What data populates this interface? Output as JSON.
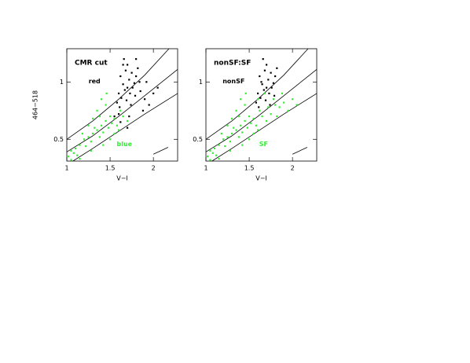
{
  "chart_data": [
    {
      "type": "scatter",
      "title": "CMR cut",
      "xlabel": "V−I",
      "ylabel": "464−518",
      "xlim": [
        1,
        2.28
      ],
      "ylim": [
        0.31,
        1.29
      ],
      "xticks": [
        1,
        1.5,
        2
      ],
      "yticks": [
        0.5,
        1
      ],
      "series": [
        {
          "name": "red",
          "color": "#000000",
          "x": [
            1.62,
            1.65,
            1.68,
            1.7,
            1.72,
            1.75,
            1.78,
            1.6,
            1.63,
            1.67,
            1.73,
            1.76,
            1.8,
            1.82,
            1.7,
            1.66,
            1.58,
            1.61,
            1.69,
            1.74,
            1.79,
            1.85,
            1.9,
            1.95,
            2.0,
            1.88,
            1.55,
            1.6,
            1.72,
            1.84,
            1.92,
            2.05,
            1.7,
            1.62,
            1.8,
            1.65
          ],
          "values": [
            1.05,
            0.98,
            1.1,
            0.95,
            1.02,
            1.08,
            0.99,
            0.9,
            0.86,
            0.93,
            0.9,
            0.95,
            1.05,
            1.12,
            1.15,
            1.2,
            0.82,
            0.78,
            0.84,
            0.8,
            0.88,
            0.92,
            0.85,
            0.8,
            0.9,
            0.75,
            0.7,
            0.72,
            0.7,
            1.0,
            1.0,
            0.95,
            0.6,
            0.65,
            1.2,
            1.15
          ]
        },
        {
          "name": "blue",
          "color": "#33ee33",
          "x": [
            1.02,
            1.05,
            1.08,
            1.1,
            1.12,
            1.15,
            1.2,
            1.22,
            1.25,
            1.28,
            1.3,
            1.32,
            1.35,
            1.38,
            1.4,
            1.42,
            1.45,
            1.48,
            1.5,
            1.52,
            1.55,
            1.58,
            1.35,
            1.4,
            1.45,
            1.3,
            1.25,
            1.18,
            1.6,
            1.65,
            1.7,
            1.05,
            1.15,
            1.5,
            1.55,
            1.42,
            1.28,
            1.62,
            1.38,
            1.46
          ],
          "values": [
            0.35,
            0.4,
            0.38,
            0.42,
            0.36,
            0.45,
            0.5,
            0.44,
            0.52,
            0.48,
            0.55,
            0.6,
            0.58,
            0.52,
            0.62,
            0.56,
            0.66,
            0.6,
            0.7,
            0.64,
            0.68,
            0.62,
            0.75,
            0.85,
            0.8,
            0.68,
            0.62,
            0.55,
            0.58,
            0.7,
            0.66,
            0.32,
            0.33,
            0.5,
            0.55,
            0.45,
            0.4,
            0.75,
            0.7,
            0.9
          ]
        }
      ],
      "curves": [
        {
          "x": [
            1,
            1.3,
            1.6,
            1.9,
            2.18
          ],
          "y": [
            0.5,
            0.66,
            0.85,
            1.06,
            1.29
          ]
        },
        {
          "x": [
            1,
            1.3,
            1.6,
            1.9,
            2.28
          ],
          "y": [
            0.39,
            0.53,
            0.7,
            0.88,
            1.11
          ]
        },
        {
          "x": [
            1.07,
            1.3,
            1.6,
            1.9,
            2.28
          ],
          "y": [
            0.31,
            0.42,
            0.57,
            0.72,
            0.9
          ]
        }
      ],
      "vector": {
        "x": [
          2.0,
          2.17
        ],
        "y": [
          0.37,
          0.43
        ]
      }
    },
    {
      "type": "scatter",
      "title": "nonSF:SF",
      "xlabel": "V−I",
      "xlim": [
        1,
        2.28
      ],
      "ylim": [
        0.31,
        1.29
      ],
      "xticks": [
        1,
        1.5,
        2
      ],
      "yticks": [
        0.5,
        1
      ],
      "series": [
        {
          "name": "nonSF",
          "color": "#000000",
          "x": [
            1.62,
            1.65,
            1.68,
            1.7,
            1.72,
            1.75,
            1.78,
            1.6,
            1.63,
            1.67,
            1.73,
            1.76,
            1.8,
            1.82,
            1.7,
            1.66,
            1.58,
            1.61,
            1.69,
            1.74,
            1.79,
            1.64
          ],
          "values": [
            1.05,
            0.98,
            1.1,
            0.95,
            1.02,
            1.08,
            0.99,
            0.9,
            0.86,
            0.93,
            0.9,
            0.95,
            1.05,
            1.12,
            1.15,
            1.2,
            0.82,
            0.78,
            0.84,
            0.8,
            0.88,
            1.0
          ]
        },
        {
          "name": "SF",
          "color": "#33ee33",
          "x": [
            1.02,
            1.05,
            1.08,
            1.1,
            1.12,
            1.15,
            1.2,
            1.22,
            1.25,
            1.28,
            1.3,
            1.32,
            1.35,
            1.38,
            1.4,
            1.42,
            1.45,
            1.48,
            1.5,
            1.52,
            1.55,
            1.58,
            1.35,
            1.4,
            1.45,
            1.3,
            1.25,
            1.18,
            1.6,
            1.65,
            1.7,
            1.05,
            1.15,
            1.5,
            1.55,
            1.42,
            1.28,
            1.62,
            1.38,
            1.46,
            1.75,
            1.8,
            1.85,
            1.9,
            1.95,
            2.0,
            1.88,
            1.78,
            1.72,
            2.05,
            1.82,
            1.6,
            1.68
          ],
          "values": [
            0.35,
            0.4,
            0.38,
            0.42,
            0.36,
            0.45,
            0.5,
            0.44,
            0.52,
            0.48,
            0.55,
            0.6,
            0.58,
            0.52,
            0.62,
            0.56,
            0.66,
            0.6,
            0.7,
            0.64,
            0.68,
            0.62,
            0.75,
            0.85,
            0.8,
            0.68,
            0.62,
            0.55,
            0.58,
            0.7,
            0.66,
            0.32,
            0.33,
            0.5,
            0.55,
            0.45,
            0.4,
            0.75,
            0.7,
            0.9,
            0.72,
            0.8,
            0.78,
            0.82,
            0.75,
            0.85,
            0.9,
            0.85,
            0.78,
            0.8,
            0.7,
            0.85,
            0.9
          ]
        }
      ],
      "curves": [
        {
          "x": [
            1,
            1.3,
            1.6,
            1.9,
            2.18
          ],
          "y": [
            0.5,
            0.66,
            0.85,
            1.06,
            1.29
          ]
        },
        {
          "x": [
            1,
            1.3,
            1.6,
            1.9,
            2.28
          ],
          "y": [
            0.39,
            0.53,
            0.7,
            0.88,
            1.11
          ]
        },
        {
          "x": [
            1.07,
            1.3,
            1.6,
            1.9,
            2.28
          ],
          "y": [
            0.31,
            0.42,
            0.57,
            0.72,
            0.9
          ]
        }
      ],
      "vector": {
        "x": [
          2.0,
          2.17
        ],
        "y": [
          0.37,
          0.43
        ]
      }
    }
  ]
}
